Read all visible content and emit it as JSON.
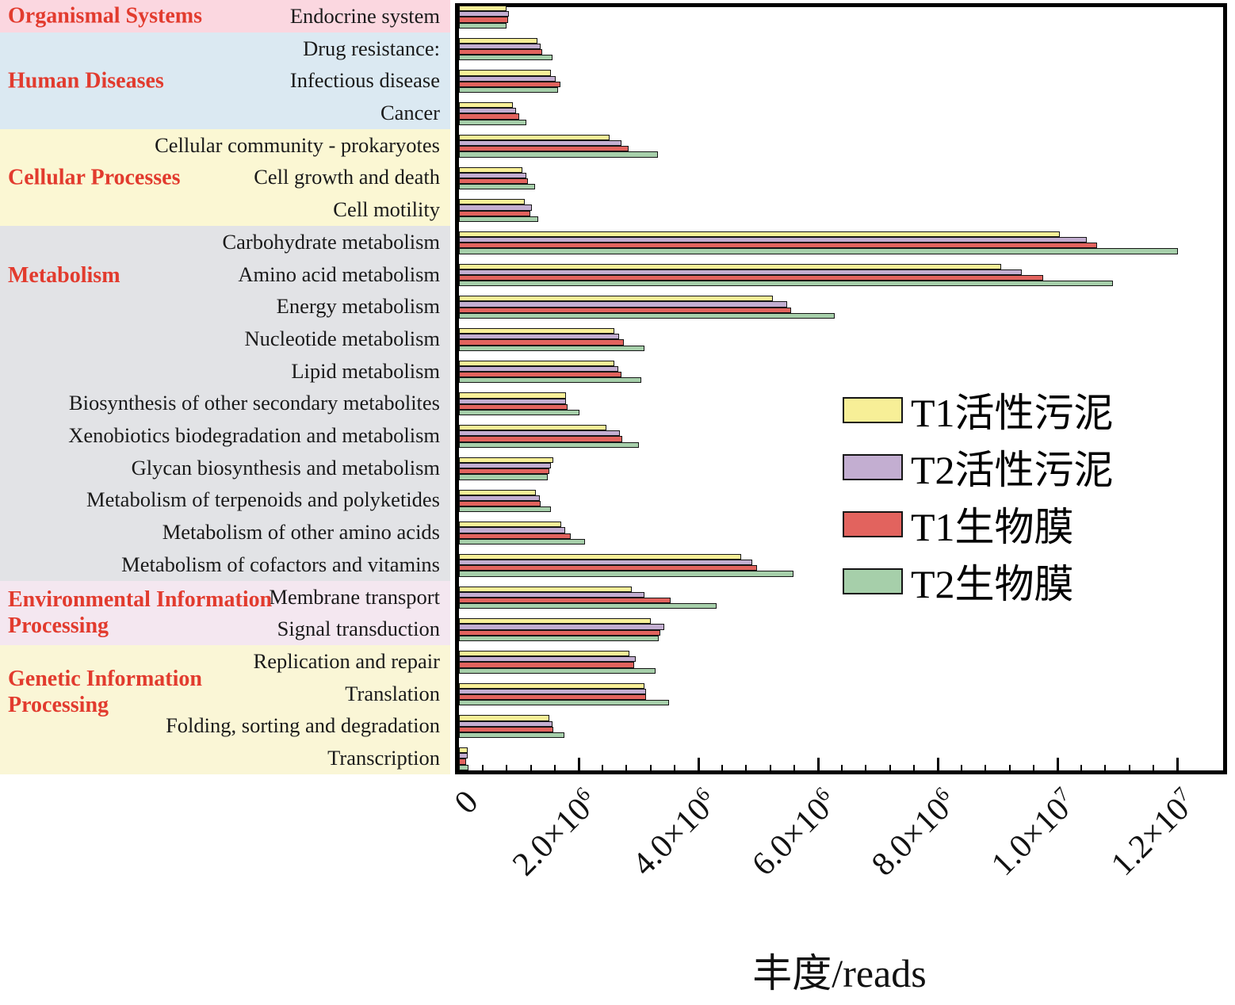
{
  "chart_data": {
    "type": "bar",
    "orientation": "horizontal",
    "title": "",
    "x_axis": {
      "title": "丰度/reads",
      "xlim": [
        0,
        12800000
      ],
      "tick_step": 2000000,
      "minor_ticks_per_interval": 4,
      "ticks": [
        {
          "mantissa": "0",
          "exp": ""
        },
        {
          "mantissa": "2.0×10",
          "exp": "6"
        },
        {
          "mantissa": "4.0×10",
          "exp": "6"
        },
        {
          "mantissa": "6.0×10",
          "exp": "6"
        },
        {
          "mantissa": "8.0×10",
          "exp": "6"
        },
        {
          "mantissa": "1.0×10",
          "exp": "7"
        },
        {
          "mantissa": "1.2×10",
          "exp": "7"
        }
      ]
    },
    "section_label_color": "#E23B2E",
    "bar_border_color": "#151515",
    "series": [
      {
        "key": "t1-activated-sludge",
        "label": "T1活性污泥",
        "color": "#F7EF97"
      },
      {
        "key": "t2-activated-sludge",
        "label": "T2活性污泥",
        "color": "#C3AED1"
      },
      {
        "key": "t1-biofilm",
        "label": "T1生物膜",
        "color": "#E2635E"
      },
      {
        "key": "t2-biofilm",
        "label": "T2生物膜",
        "color": "#A6CFAA"
      }
    ],
    "sections": [
      {
        "name": "Organismal Systems",
        "bg": "#FBD7E0",
        "rows": [
          {
            "label": "Endocrine system",
            "values": [
              790000,
              840000,
              820000,
              800000
            ]
          }
        ]
      },
      {
        "name": "Human Diseases",
        "bg": "#DBE9F2",
        "rows": [
          {
            "label": "Drug resistance:",
            "values": [
              1310000,
              1360000,
              1390000,
              1560000
            ]
          },
          {
            "label": "Infectious disease",
            "values": [
              1540000,
              1620000,
              1690000,
              1660000
            ]
          },
          {
            "label": "Cancer",
            "values": [
              900000,
              960000,
              1000000,
              1130000
            ]
          }
        ]
      },
      {
        "name": "Cellular Processes",
        "bg": "#FBF7D3",
        "rows": [
          {
            "label": "Cellular community - prokaryotes",
            "values": [
              2520000,
              2720000,
              2840000,
              3320000
            ]
          },
          {
            "label": "Cell growth and death",
            "values": [
              1060000,
              1120000,
              1150000,
              1270000
            ]
          },
          {
            "label": "Cell motility",
            "values": [
              1100000,
              1220000,
              1190000,
              1320000
            ]
          }
        ]
      },
      {
        "name": "Metabolism",
        "bg": "#E2E3E6",
        "rows": [
          {
            "label": "Carbohydrate metabolism",
            "values": [
              10040000,
              10490000,
              10660000,
              12010000
            ]
          },
          {
            "label": "Amino acid metabolism",
            "values": [
              9060000,
              9400000,
              9760000,
              10930000
            ]
          },
          {
            "label": "Energy metabolism",
            "values": [
              5250000,
              5480000,
              5550000,
              6280000
            ]
          },
          {
            "label": "Nucleotide metabolism",
            "values": [
              2600000,
              2680000,
              2750000,
              3100000
            ]
          },
          {
            "label": "Lipid metabolism",
            "values": [
              2590000,
              2660000,
              2710000,
              3040000
            ]
          },
          {
            "label": "Biosynthesis of other secondary metabolites",
            "values": [
              1790000,
              1790000,
              1810000,
              2010000
            ]
          },
          {
            "label": "Xenobiotics biodegradation and metabolism",
            "values": [
              2460000,
              2690000,
              2730000,
              3010000
            ]
          },
          {
            "label": "Glycan biosynthesis and metabolism",
            "values": [
              1570000,
              1540000,
              1510000,
              1490000
            ]
          },
          {
            "label": "Metabolism of terpenoids and polyketides",
            "values": [
              1280000,
              1350000,
              1370000,
              1540000
            ]
          },
          {
            "label": "Metabolism of other amino acids",
            "values": [
              1710000,
              1770000,
              1870000,
              2110000
            ]
          },
          {
            "label": "Metabolism of cofactors and vitamins",
            "values": [
              4720000,
              4900000,
              4980000,
              5590000
            ]
          }
        ]
      },
      {
        "name": "Environmental Information\nProcessing",
        "bg": "#F4E7F0",
        "rows": [
          {
            "label": "Membrane transport",
            "values": [
              2890000,
              3100000,
              3540000,
              4300000
            ]
          },
          {
            "label": "Signal transduction",
            "values": [
              3210000,
              3430000,
              3370000,
              3340000
            ]
          }
        ]
      },
      {
        "name": "Genetic Information\nProcessing",
        "bg": "#FAF6D6",
        "rows": [
          {
            "label": "Replication and repair",
            "values": [
              2850000,
              2950000,
              2930000,
              3290000
            ]
          },
          {
            "label": "Translation",
            "values": [
              3100000,
              3120000,
              3130000,
              3510000
            ]
          },
          {
            "label": "Folding, sorting and degradation",
            "values": [
              1510000,
              1560000,
              1570000,
              1760000
            ]
          },
          {
            "label": "Transcription",
            "values": [
              150000,
              140000,
              120000,
              160000
            ]
          }
        ]
      }
    ],
    "legend_position": "center-right"
  }
}
